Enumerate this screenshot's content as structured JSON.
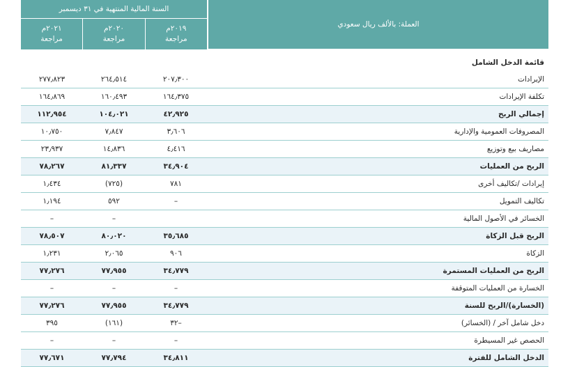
{
  "header": {
    "currency_label": "العملة: بالألف ريال سعودي",
    "period_title": "السنة المالية المنتهية في ٣١ ديسمبر",
    "years": [
      {
        "year": "٢٠٢١م",
        "note": "مراجعة"
      },
      {
        "year": "٢٠٢٠م",
        "note": "مراجعة"
      },
      {
        "year": "٢٠١٩م",
        "note": "مراجعة"
      }
    ]
  },
  "section_title": "قائمة الدخل الشامل",
  "rows": [
    {
      "label": "الإيرادات",
      "v2021": "٢٧٧٫٨٢٣",
      "v2020": "٢٦٤٫٥١٤",
      "v2019": "٢٠٧٫٣٠٠"
    },
    {
      "label": "تكلفة الإيرادات",
      "v2021": "١٦٤٫٨٦٩",
      "v2020": "١٦٠٫٤٩٣",
      "v2019": "١٦٤٫٣٧٥"
    },
    {
      "label": "إجمالي الربح",
      "v2021": "١١٢٫٩٥٤",
      "v2020": "١٠٤٫٠٢١",
      "v2019": "٤٢٫٩٢٥"
    },
    {
      "label": "المصروفات العمومية والإدارية",
      "v2021": "١٠٫٧٥٠",
      "v2020": "٧٫٨٤٧",
      "v2019": "٣٫٦٠٦"
    },
    {
      "label": "مصاريف بيع وتوزيع",
      "v2021": "٢٣٫٩٣٧",
      "v2020": "١٤٫٨٣٦",
      "v2019": "٤٫٤١٦"
    },
    {
      "label": "الربح من العمليات",
      "v2021": "٧٨٫٢٦٧",
      "v2020": "٨١٫٣٣٧",
      "v2019": "٣٤٫٩٠٤"
    },
    {
      "label": "إيرادات /تكاليف أخرى",
      "v2021": "١٫٤٣٤",
      "v2020": "(٧٢٥)",
      "v2019": "٧٨١"
    },
    {
      "label": "تكاليف التمويل",
      "v2021": "١٫١٩٤",
      "v2020": "٥٩٢",
      "v2019": "–"
    },
    {
      "label": "الخسائر في الأصول المالية",
      "v2021": "–",
      "v2020": "–",
      "v2019": ""
    },
    {
      "label": "الربح قبل الزكاة",
      "v2021": "٧٨٫٥٠٧",
      "v2020": "٨٠٫٠٢٠",
      "v2019": "٣٥٫٦٨٥"
    },
    {
      "label": "الزكاة",
      "v2021": "١٫٢٣١",
      "v2020": "٢٫٠٦٥",
      "v2019": "٩٠٦"
    },
    {
      "label": "الربح من العمليات المستمرة",
      "v2021": "٧٧٫٢٧٦",
      "v2020": "٧٧٫٩٥٥",
      "v2019": "٣٤٫٧٧٩"
    },
    {
      "label": "الخسارة من العمليات المتوقفة",
      "v2021": "–",
      "v2020": "–",
      "v2019": "–"
    },
    {
      "label": "(الخسارة)/الربح للسنة",
      "v2021": "٧٧٫٢٧٦",
      "v2020": "٧٧٫٩٥٥",
      "v2019": "٣٤٫٧٧٩"
    },
    {
      "label": "دخل شامل آخر / (الخسائر)",
      "v2021": "٣٩٥",
      "v2020": "(١٦١)",
      "v2019": "٣٢–"
    },
    {
      "label": "الحصص غير المسيطرة",
      "v2021": "–",
      "v2020": "–",
      "v2019": "–"
    },
    {
      "label": "الدخل الشامل للفترة",
      "v2021": "٧٧٫٦٧١",
      "v2020": "٧٧٫٧٩٤",
      "v2019": "٣٤٫٨١١"
    }
  ]
}
